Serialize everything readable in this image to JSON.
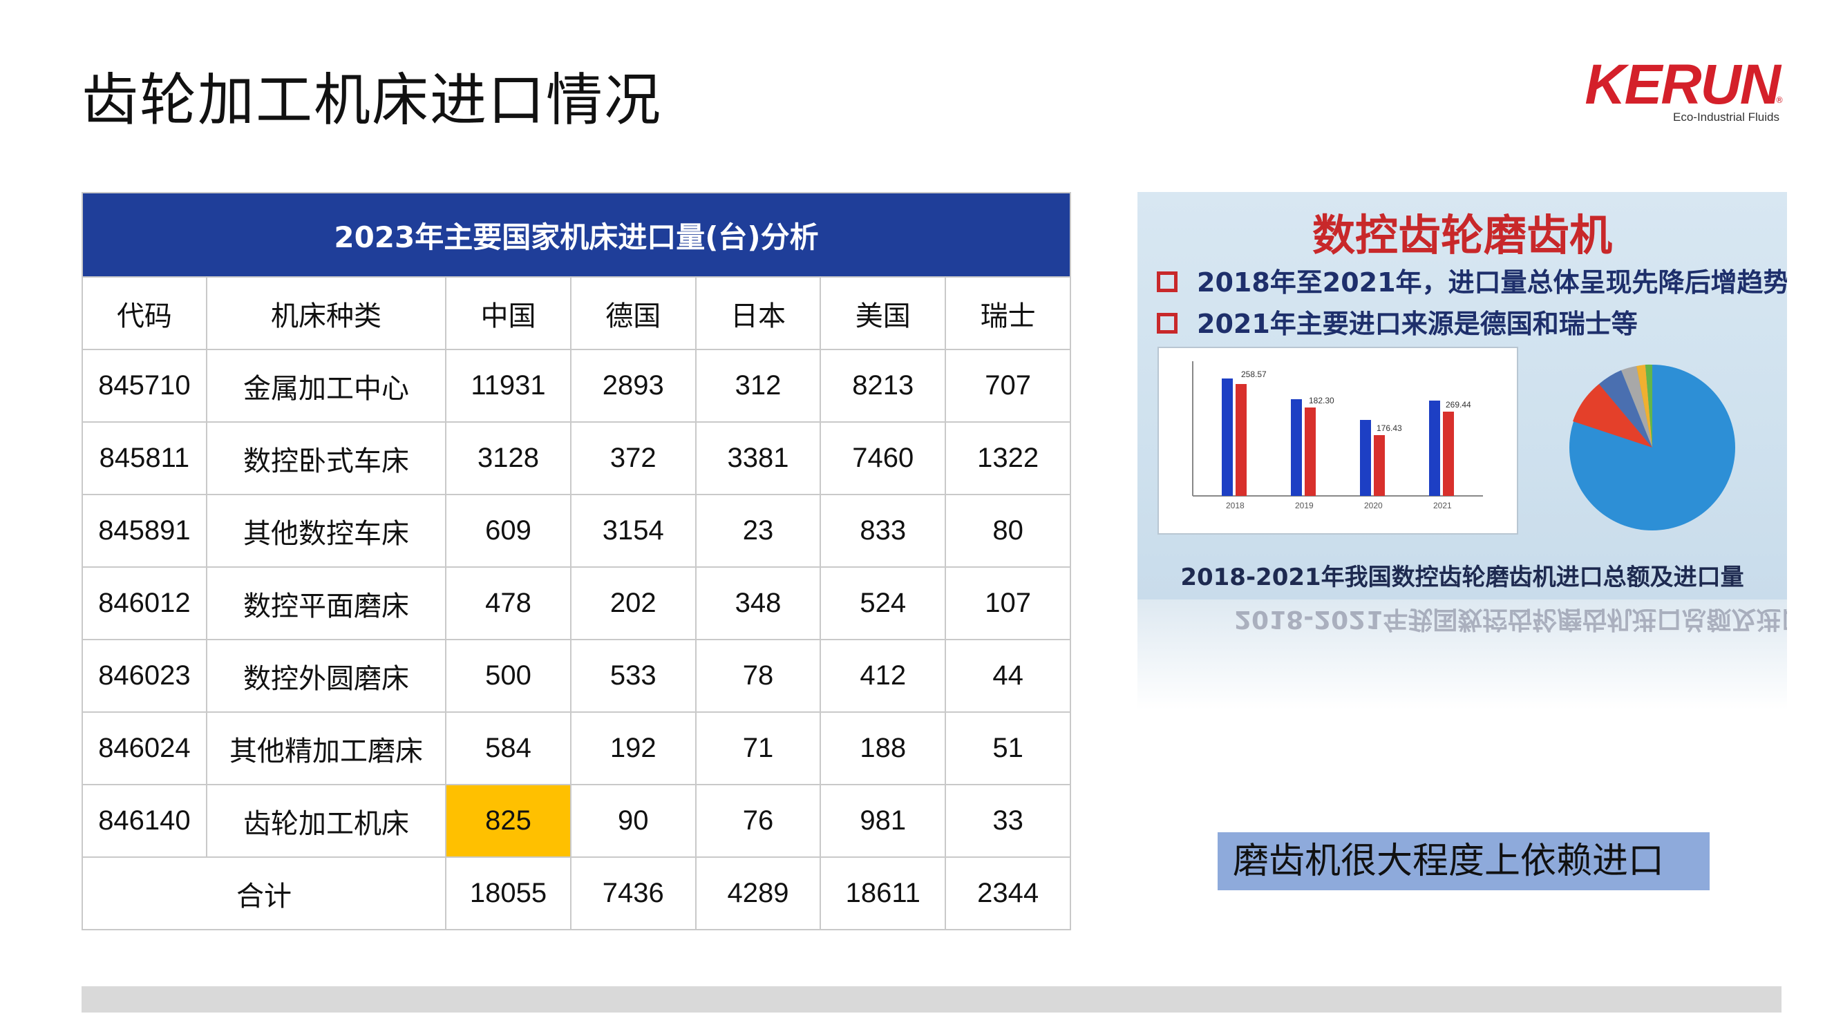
{
  "page_title": "齿轮加工机床进口情况",
  "logo": {
    "word": "KERUN",
    "tagline": "Eco-Industrial Fluids",
    "reg": "®"
  },
  "table": {
    "caption": "2023年主要国家机床进口量(台)分析",
    "headers": [
      "代码",
      "机床种类",
      "中国",
      "德国",
      "日本",
      "美国",
      "瑞士"
    ],
    "rows": [
      [
        "845710",
        "金属加工中心",
        "11931",
        "2893",
        "312",
        "8213",
        "707"
      ],
      [
        "845811",
        "数控卧式车床",
        "3128",
        "372",
        "3381",
        "7460",
        "1322"
      ],
      [
        "845891",
        "其他数控车床",
        "609",
        "3154",
        "23",
        "833",
        "80"
      ],
      [
        "846012",
        "数控平面磨床",
        "478",
        "202",
        "348",
        "524",
        "107"
      ],
      [
        "846023",
        "数控外圆磨床",
        "500",
        "533",
        "78",
        "412",
        "44"
      ],
      [
        "846024",
        "其他精加工磨床",
        "584",
        "192",
        "71",
        "188",
        "51"
      ],
      [
        "846140",
        "齿轮加工机床",
        "825",
        "90",
        "76",
        "981",
        "33"
      ]
    ],
    "total": [
      "合计",
      "18055",
      "7436",
      "4289",
      "18611",
      "2344"
    ],
    "highlight_color": "#ffc000",
    "header_color": "#1f3e99"
  },
  "photo": {
    "title": "数控齿轮磨齿机",
    "bullets": [
      "2018年至2021年，进口量总体呈现先降后增趋势",
      "2021年主要进口来源是德国和瑞士等"
    ],
    "caption": "2018-2021年我国数控齿轮磨齿机进口总额及进口量",
    "bar_labels": [
      "258.57",
      "182.30",
      "176.43",
      "269.44"
    ],
    "bar_years": [
      "2018",
      "2019",
      "2020",
      "2021"
    ]
  },
  "note": "磨齿机很大程度上依赖进口"
}
